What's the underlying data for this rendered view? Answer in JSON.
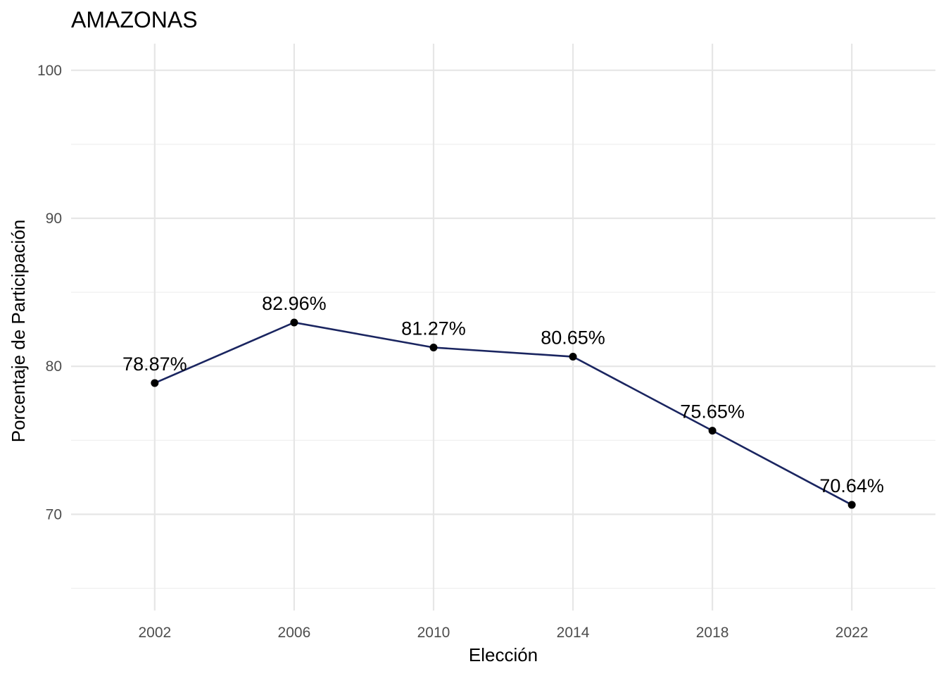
{
  "chart_data": {
    "type": "line",
    "title": "AMAZONAS",
    "xlabel": "Elección",
    "ylabel": "Porcentaje de Participación",
    "x": [
      2002,
      2006,
      2010,
      2014,
      2018,
      2022
    ],
    "series": [
      {
        "values": [
          78.87,
          82.96,
          81.27,
          80.65,
          75.65,
          70.64
        ],
        "labels": [
          "78.87%",
          "82.96%",
          "81.27%",
          "80.65%",
          "75.65%",
          "70.64%"
        ],
        "color": "#1a2560"
      }
    ],
    "xticks": [
      2002,
      2006,
      2010,
      2014,
      2018,
      2022
    ],
    "xtick_labels": [
      "2002",
      "2006",
      "2010",
      "2014",
      "2018",
      "2022"
    ],
    "yticks": [
      70,
      80,
      90,
      100
    ],
    "ytick_labels": [
      "70",
      "80",
      "90",
      "100"
    ],
    "xlim": [
      1999.6,
      2024.4
    ],
    "ylim": [
      63.5,
      101.8
    ],
    "grid": true,
    "point_color": "#000000"
  }
}
